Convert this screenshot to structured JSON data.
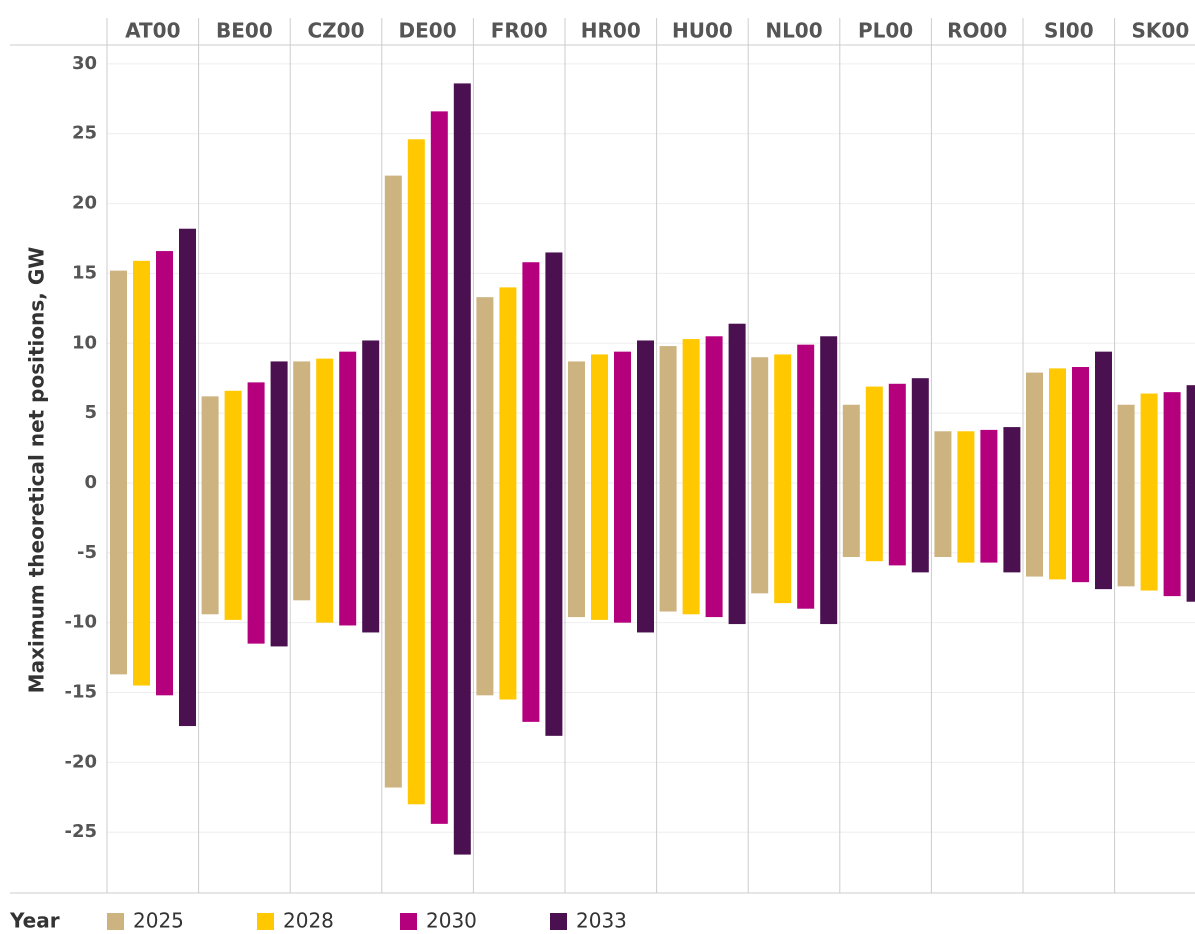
{
  "chart_data": {
    "type": "floating-bar",
    "y_label": "Maximum theoretical net positions, GW",
    "legend_title": "Year",
    "categories": [
      "AT00",
      "BE00",
      "CZ00",
      "DE00",
      "FR00",
      "HR00",
      "HU00",
      "NL00",
      "PL00",
      "RO00",
      "SI00",
      "SK00"
    ],
    "series": [
      {
        "name": "2025",
        "color": "#cdb380",
        "max": [
          15.2,
          6.2,
          8.7,
          22.0,
          13.3,
          8.7,
          9.8,
          9.0,
          5.6,
          3.7,
          7.9,
          5.6
        ],
        "min": [
          -13.7,
          -9.4,
          -8.4,
          -21.8,
          -15.2,
          -9.6,
          -9.2,
          -7.9,
          -5.3,
          -5.3,
          -6.7,
          -7.4
        ]
      },
      {
        "name": "2028",
        "color": "#ffc800",
        "max": [
          15.9,
          6.6,
          8.9,
          24.6,
          14.0,
          9.2,
          10.3,
          9.2,
          6.9,
          3.7,
          8.2,
          6.4
        ],
        "min": [
          -14.5,
          -9.8,
          -10.0,
          -23.0,
          -15.5,
          -9.8,
          -9.4,
          -8.6,
          -5.6,
          -5.7,
          -6.9,
          -7.7
        ]
      },
      {
        "name": "2030",
        "color": "#b5007e",
        "max": [
          16.6,
          7.2,
          9.4,
          26.6,
          15.8,
          9.4,
          10.5,
          9.9,
          7.1,
          3.8,
          8.3,
          6.5
        ],
        "min": [
          -15.2,
          -11.5,
          -10.2,
          -24.4,
          -17.1,
          -10.0,
          -9.6,
          -9.0,
          -5.9,
          -5.7,
          -7.1,
          -8.1
        ]
      },
      {
        "name": "2033",
        "color": "#4a1050",
        "max": [
          18.2,
          8.7,
          10.2,
          28.6,
          16.5,
          10.2,
          11.4,
          10.5,
          7.5,
          4.0,
          9.4,
          7.0
        ],
        "min": [
          -17.4,
          -11.7,
          -10.7,
          -26.6,
          -18.1,
          -10.7,
          -10.1,
          -10.1,
          -6.4,
          -6.4,
          -7.6,
          -8.5
        ]
      }
    ],
    "ylim": [
      -29.35,
      31.35
    ],
    "yticks": [
      -25,
      -20,
      -15,
      -10,
      -5,
      0,
      5,
      10,
      15,
      20,
      25,
      30
    ],
    "grid": true
  }
}
